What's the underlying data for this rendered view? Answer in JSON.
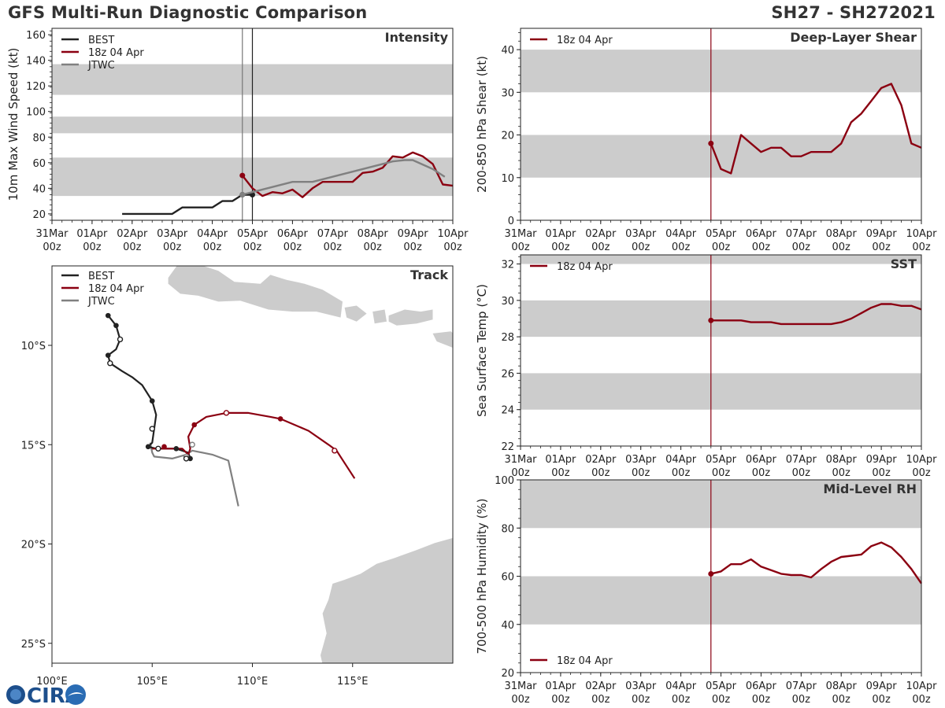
{
  "header": {
    "title": "GFS Multi-Run Diagnostic Comparison",
    "storm_id": "SH27 - SH272021"
  },
  "logo": {
    "text": "CIRA"
  },
  "colors": {
    "best": "#222222",
    "run": "#8b0011",
    "jtwc": "#808080",
    "band": "#cccccc",
    "land": "#cccccc"
  },
  "time_axis": {
    "tick_labels": [
      [
        "31Mar",
        "00z"
      ],
      [
        "01Apr",
        "00z"
      ],
      [
        "02Apr",
        "00z"
      ],
      [
        "03Apr",
        "00z"
      ],
      [
        "04Apr",
        "00z"
      ],
      [
        "05Apr",
        "00z"
      ],
      [
        "06Apr",
        "00z"
      ],
      [
        "07Apr",
        "00z"
      ],
      [
        "08Apr",
        "00z"
      ],
      [
        "09Apr",
        "00z"
      ],
      [
        "10Apr",
        "00z"
      ]
    ],
    "range_days": [
      0,
      10
    ]
  },
  "chart_data": [
    {
      "id": "intensity",
      "type": "line",
      "title": "Intensity",
      "ylabel": "10m Max Wind Speed (kt)",
      "ylim": [
        15,
        165
      ],
      "yticks": [
        20,
        40,
        60,
        80,
        100,
        120,
        140,
        160
      ],
      "bands": [
        [
          34,
          64
        ],
        [
          83,
          96
        ],
        [
          113,
          137
        ]
      ],
      "vlines": [
        4.75,
        5.0
      ],
      "legend": [
        "BEST",
        "18z 04 Apr",
        "JTWC"
      ],
      "series": [
        {
          "name": "BEST",
          "x": [
            1.75,
            2.0,
            2.25,
            2.5,
            2.75,
            3.0,
            3.25,
            3.5,
            3.75,
            4.0,
            4.25,
            4.5,
            4.75,
            5.0
          ],
          "y": [
            20,
            20,
            20,
            20,
            20,
            20,
            25,
            25,
            25,
            25,
            30,
            30,
            35,
            35
          ],
          "markers": [
            4.75,
            5.0
          ]
        },
        {
          "name": "18z 04 Apr",
          "x": [
            4.75,
            5.0,
            5.25,
            5.5,
            5.75,
            6.0,
            6.25,
            6.5,
            6.75,
            7.0,
            7.25,
            7.5,
            7.75,
            8.0,
            8.25,
            8.5,
            8.75,
            9.0,
            9.25,
            9.5,
            9.75,
            10.0
          ],
          "y": [
            50,
            40,
            34,
            37,
            36,
            39,
            33,
            40,
            45,
            45,
            45,
            45,
            52,
            53,
            56,
            65,
            64,
            68,
            65,
            59,
            43,
            42
          ],
          "markers": [
            4.75
          ]
        },
        {
          "name": "JTWC",
          "x": [
            4.75,
            5.0,
            5.5,
            6.0,
            6.5,
            7.0,
            7.5,
            8.0,
            8.5,
            8.8,
            9.0,
            9.5,
            9.8
          ],
          "y": [
            35,
            37,
            41,
            45,
            45,
            49,
            53,
            57,
            61,
            62,
            62,
            55,
            49
          ],
          "markers": [
            4.75
          ]
        }
      ]
    },
    {
      "id": "shear",
      "type": "line",
      "title": "Deep-Layer Shear",
      "ylabel": "200-850 hPa Shear (kt)",
      "ylim": [
        0,
        45
      ],
      "yticks": [
        0,
        10,
        20,
        30,
        40
      ],
      "bands": [
        [
          10,
          20
        ],
        [
          30,
          40
        ]
      ],
      "vlines": [
        4.75
      ],
      "legend": [
        "18z 04 Apr"
      ],
      "series": [
        {
          "name": "18z 04 Apr",
          "x": [
            4.75,
            5.0,
            5.25,
            5.5,
            5.75,
            6.0,
            6.25,
            6.5,
            6.75,
            7.0,
            7.25,
            7.5,
            7.75,
            8.0,
            8.25,
            8.5,
            8.75,
            9.0,
            9.25,
            9.5,
            9.75,
            10.0
          ],
          "y": [
            18,
            12,
            11,
            20,
            18,
            16,
            17,
            17,
            15,
            15,
            16,
            16,
            16,
            18,
            23,
            25,
            28,
            31,
            32,
            27,
            18,
            17
          ],
          "markers": [
            4.75
          ]
        }
      ]
    },
    {
      "id": "sst",
      "type": "line",
      "title": "SST",
      "ylabel": "Sea Surface Temp (°C)",
      "ylim": [
        22,
        32.5
      ],
      "yticks": [
        22,
        24,
        26,
        28,
        30,
        32
      ],
      "bands": [
        [
          24,
          26
        ],
        [
          28,
          30
        ],
        [
          32,
          33
        ]
      ],
      "vlines": [
        4.75
      ],
      "legend": [
        "18z 04 Apr"
      ],
      "series": [
        {
          "name": "18z 04 Apr",
          "x": [
            4.75,
            5.0,
            5.25,
            5.5,
            5.75,
            6.0,
            6.25,
            6.5,
            6.75,
            7.0,
            7.25,
            7.5,
            7.75,
            8.0,
            8.25,
            8.5,
            8.75,
            9.0,
            9.25,
            9.5,
            9.75,
            10.0
          ],
          "y": [
            28.9,
            28.9,
            28.9,
            28.9,
            28.8,
            28.8,
            28.8,
            28.7,
            28.7,
            28.7,
            28.7,
            28.7,
            28.7,
            28.8,
            29.0,
            29.3,
            29.6,
            29.8,
            29.8,
            29.7,
            29.7,
            29.5
          ],
          "markers": [
            4.75
          ]
        }
      ]
    },
    {
      "id": "rh",
      "type": "line",
      "title": "Mid-Level RH",
      "ylabel": "700-500 hPa Humidity (%)",
      "ylim": [
        20,
        100
      ],
      "yticks": [
        20,
        40,
        60,
        80,
        100
      ],
      "bands": [
        [
          40,
          60
        ],
        [
          80,
          100
        ]
      ],
      "vlines": [
        4.75
      ],
      "legend": [
        "18z 04 Apr"
      ],
      "series": [
        {
          "name": "18z 04 Apr",
          "x": [
            4.75,
            5.0,
            5.25,
            5.5,
            5.75,
            6.0,
            6.25,
            6.5,
            6.75,
            7.0,
            7.25,
            7.5,
            7.75,
            8.0,
            8.25,
            8.5,
            8.75,
            9.0,
            9.25,
            9.5,
            9.75,
            10.0
          ],
          "y": [
            61,
            62,
            65,
            65,
            67,
            64,
            62.5,
            61,
            60.5,
            60.5,
            59.5,
            63,
            66,
            68,
            68.5,
            69,
            72.5,
            74,
            72,
            68,
            63,
            57
          ],
          "markers": [
            4.75
          ]
        }
      ]
    },
    {
      "id": "track",
      "type": "scatter",
      "title": "Track",
      "lon_range": [
        100,
        120
      ],
      "lat_range": [
        -26,
        -6
      ],
      "xticks": [
        100,
        105,
        110,
        115
      ],
      "xtick_labels": [
        "100°E",
        "105°E",
        "110°E",
        "115°E"
      ],
      "yticks": [
        -10,
        -15,
        -20,
        -25
      ],
      "ytick_labels": [
        "10°S",
        "15°S",
        "20°S",
        "25°S"
      ],
      "legend": [
        "BEST",
        "18z 04 Apr",
        "JTWC"
      ],
      "series": [
        {
          "name": "BEST",
          "lon": [
            102.8,
            103.2,
            103.4,
            103.2,
            102.8,
            102.9,
            103.5,
            104.0,
            104.5,
            105.0,
            105.2,
            105.1,
            105.0,
            104.8,
            105.2,
            106.2,
            106.8,
            106.9
          ],
          "lat": [
            -8.5,
            -9.0,
            -9.7,
            -10.2,
            -10.5,
            -10.9,
            -11.3,
            -11.6,
            -12.0,
            -12.8,
            -13.5,
            -14.2,
            -14.9,
            -15.1,
            -15.2,
            -15.2,
            -15.4,
            -15.7
          ],
          "filled": [
            [
              102.8,
              -8.5
            ],
            [
              103.2,
              -9.0
            ],
            [
              102.8,
              -10.5
            ],
            [
              105.0,
              -12.8
            ],
            [
              104.8,
              -15.1
            ],
            [
              106.2,
              -15.2
            ],
            [
              106.9,
              -15.7
            ]
          ],
          "open": [
            [
              103.4,
              -9.7
            ],
            [
              102.9,
              -10.9
            ],
            [
              105.0,
              -14.2
            ],
            [
              105.3,
              -15.2
            ],
            [
              106.7,
              -15.7
            ]
          ]
        },
        {
          "name": "18z 04 Apr",
          "lon": [
            105.0,
            105.5,
            106.0,
            106.5,
            106.8,
            106.9,
            106.8,
            107.1,
            107.7,
            108.7,
            109.8,
            110.9,
            111.4,
            112.8,
            113.8,
            114.2,
            115.1
          ],
          "lat": [
            -15.2,
            -15.2,
            -15.2,
            -15.2,
            -15.5,
            -15.2,
            -14.6,
            -14.0,
            -13.6,
            -13.4,
            -13.4,
            -13.6,
            -13.7,
            -14.3,
            -15.0,
            -15.3,
            -16.7
          ],
          "filled": [
            [
              105.6,
              -15.1
            ],
            [
              107.1,
              -14.0
            ],
            [
              111.4,
              -13.7
            ]
          ],
          "open": [
            [
              108.7,
              -13.4
            ],
            [
              114.1,
              -15.3
            ]
          ]
        },
        {
          "name": "JTWC",
          "lon": [
            104.9,
            105.0,
            105.1,
            106.0,
            106.7,
            107.0,
            108.0,
            108.8,
            109.3
          ],
          "lat": [
            -14.9,
            -15.4,
            -15.6,
            -15.7,
            -15.5,
            -15.3,
            -15.5,
            -15.8,
            -18.1
          ],
          "filled": [],
          "open": [
            [
              106.7,
              -15.6
            ],
            [
              107.0,
              -15.0
            ]
          ]
        }
      ]
    }
  ]
}
